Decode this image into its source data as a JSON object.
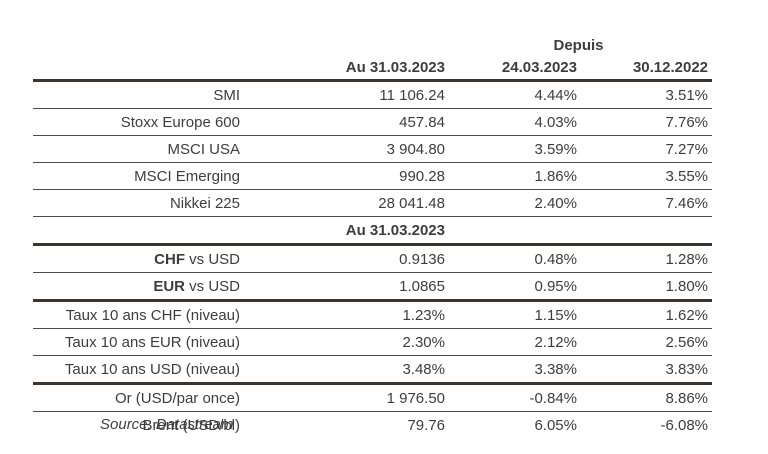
{
  "colors": {
    "background": "#ffffff",
    "text": "#3d3d3d",
    "rule_thick": "#3a3531",
    "rule_thin": "#4d4d4d"
  },
  "table": {
    "depuis": "Depuis",
    "col_headers": {
      "main": "Au 31.03.2023",
      "since1": "24.03.2023",
      "since2": "30.12.2022"
    },
    "indices": [
      {
        "label": "SMI",
        "level": "11 106.24",
        "since1": "4.44%",
        "since2": "3.51%"
      },
      {
        "label": "Stoxx Europe 600",
        "level": "457.84",
        "since1": "4.03%",
        "since2": "7.76%"
      },
      {
        "label": "MSCI USA",
        "level": "3 904.80",
        "since1": "3.59%",
        "since2": "7.27%"
      },
      {
        "label": "MSCI Emerging",
        "level": "990.28",
        "since1": "1.86%",
        "since2": "3.55%"
      },
      {
        "label": "Nikkei 225",
        "level": "28 041.48",
        "since1": "2.40%",
        "since2": "7.46%"
      }
    ],
    "mid_header": "Au 31.03.2023",
    "fx": [
      {
        "label_bold": "CHF",
        "label_rest": " vs USD",
        "level": "0.9136",
        "since1": "0.48%",
        "since2": "1.28%"
      },
      {
        "label_bold": "EUR",
        "label_rest": " vs USD",
        "level": "1.0865",
        "since1": "0.95%",
        "since2": "1.80%"
      }
    ],
    "rates": [
      {
        "label": "Taux 10 ans CHF (niveau)",
        "level": "1.23%",
        "since1": "1.15%",
        "since2": "1.62%"
      },
      {
        "label": "Taux 10 ans EUR (niveau)",
        "level": "2.30%",
        "since1": "2.12%",
        "since2": "2.56%"
      },
      {
        "label": "Taux 10 ans USD (niveau)",
        "level": "3.48%",
        "since1": "3.38%",
        "since2": "3.83%"
      }
    ],
    "commodities": [
      {
        "label": "Or (USD/par once)",
        "level": "1 976.50",
        "since1": "-0.84%",
        "since2": "8.86%"
      },
      {
        "label": "Brent (USD/bl)",
        "level": "79.76",
        "since1": "6.05%",
        "since2": "-6.08%"
      }
    ],
    "source": "Source: Datastream"
  }
}
